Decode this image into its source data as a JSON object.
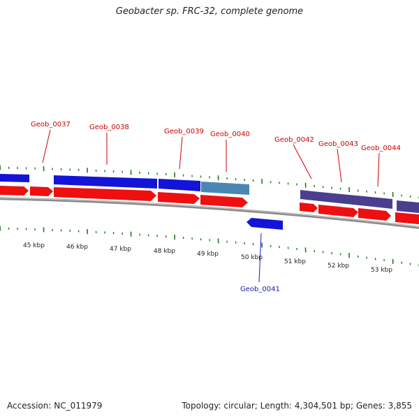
{
  "title": "Geobacter sp. FRC-32, complete genome",
  "footer": {
    "accession": "Accession: NC_011979",
    "summary": "Topology: circular; Length: 4,304,501 bp; Genes: 3,855"
  },
  "colors": {
    "cds_forward_blue": "#1414d8",
    "cds_forward_steel": "#4a86b4",
    "cds_forward_purple": "#4a3e8e",
    "cds_reverse_blue": "#1414d8",
    "rna_red": "#ee1010",
    "label_red": "#cc0000",
    "label_blue": "#1a1ab0",
    "tick_green": "#1b7a1b",
    "backbone": "#8a8a8a"
  },
  "scale_labels": [
    "45 kbp",
    "46 kbp",
    "47 kbp",
    "48 kbp",
    "49 kbp",
    "50 kbp",
    "51 kbp",
    "52 kbp",
    "53 kbp"
  ],
  "gene_labels": [
    {
      "text": "Geob_0037",
      "strand": "forward"
    },
    {
      "text": "Geob_0038",
      "strand": "forward"
    },
    {
      "text": "Geob_0039",
      "strand": "forward"
    },
    {
      "text": "Geob_0040",
      "strand": "forward"
    },
    {
      "text": "Geob_0041",
      "strand": "reverse"
    },
    {
      "text": "Geob_0042",
      "strand": "forward"
    },
    {
      "text": "Geob_0043",
      "strand": "forward"
    },
    {
      "text": "Geob_0044",
      "strand": "forward"
    }
  ]
}
